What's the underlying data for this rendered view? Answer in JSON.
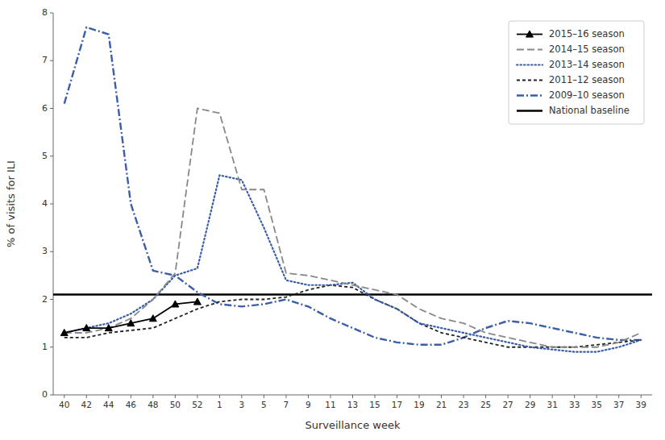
{
  "chart_data": {
    "type": "line",
    "x_label": "Surveillance week",
    "y_label": "% of visits for ILI",
    "categories": [
      "40",
      "42",
      "44",
      "46",
      "48",
      "50",
      "52",
      "1",
      "3",
      "5",
      "7",
      "9",
      "11",
      "13",
      "15",
      "17",
      "19",
      "21",
      "23",
      "25",
      "27",
      "29",
      "31",
      "33",
      "35",
      "37",
      "39"
    ],
    "series": [
      {
        "name": "2015–16 season",
        "color": "#000000",
        "line_style": "solid",
        "marker": "triangle",
        "values": [
          1.3,
          1.4,
          1.4,
          1.5,
          1.6,
          1.9,
          1.95,
          null,
          null,
          null,
          null,
          null,
          null,
          null,
          null,
          null,
          null,
          null,
          null,
          null,
          null,
          null,
          null,
          null,
          null,
          null,
          null
        ]
      },
      {
        "name": "2014–15 season",
        "color": "#888888",
        "line_style": "long-dashed",
        "values": [
          1.3,
          1.3,
          1.4,
          1.6,
          2.0,
          2.55,
          6.0,
          5.9,
          4.3,
          4.3,
          2.55,
          2.5,
          2.4,
          2.3,
          2.2,
          2.1,
          1.8,
          1.6,
          1.5,
          1.3,
          1.2,
          1.1,
          1.0,
          1.0,
          1.0,
          1.1,
          1.3
        ]
      },
      {
        "name": "2013–14 season",
        "color": "#3a5fa8",
        "line_style": "dotted",
        "values": [
          1.3,
          1.4,
          1.5,
          1.7,
          2.0,
          2.5,
          2.65,
          4.6,
          4.5,
          3.5,
          2.4,
          2.3,
          2.3,
          2.35,
          2.0,
          1.8,
          1.5,
          1.4,
          1.3,
          1.2,
          1.1,
          1.0,
          0.95,
          0.9,
          0.9,
          1.0,
          1.15
        ]
      },
      {
        "name": "2011–12 season",
        "color": "#222222",
        "line_style": "short-dashed",
        "values": [
          1.2,
          1.2,
          1.3,
          1.35,
          1.4,
          1.6,
          1.8,
          1.95,
          2.0,
          2.0,
          2.05,
          2.2,
          2.3,
          2.25,
          2.0,
          1.8,
          1.5,
          1.3,
          1.2,
          1.1,
          1.0,
          1.0,
          1.0,
          1.0,
          1.05,
          1.1,
          1.15
        ]
      },
      {
        "name": "2009–10 season",
        "color": "#3a5fa8",
        "line_style": "dash-dot",
        "values": [
          6.1,
          7.7,
          7.55,
          4.0,
          2.6,
          2.5,
          2.15,
          1.9,
          1.85,
          1.9,
          2.0,
          1.85,
          1.6,
          1.4,
          1.2,
          1.1,
          1.05,
          1.05,
          1.2,
          1.4,
          1.55,
          1.5,
          1.4,
          1.3,
          1.2,
          1.15,
          1.15
        ]
      }
    ],
    "reference_lines": [
      {
        "name": "National baseline",
        "value": 2.1,
        "color": "#000000",
        "line_style": "solid"
      }
    ],
    "ylim": [
      0,
      8
    ],
    "yticks": [
      0,
      1,
      2,
      3,
      4,
      5,
      6,
      7,
      8
    ],
    "grid": false,
    "legend": "upper right"
  }
}
